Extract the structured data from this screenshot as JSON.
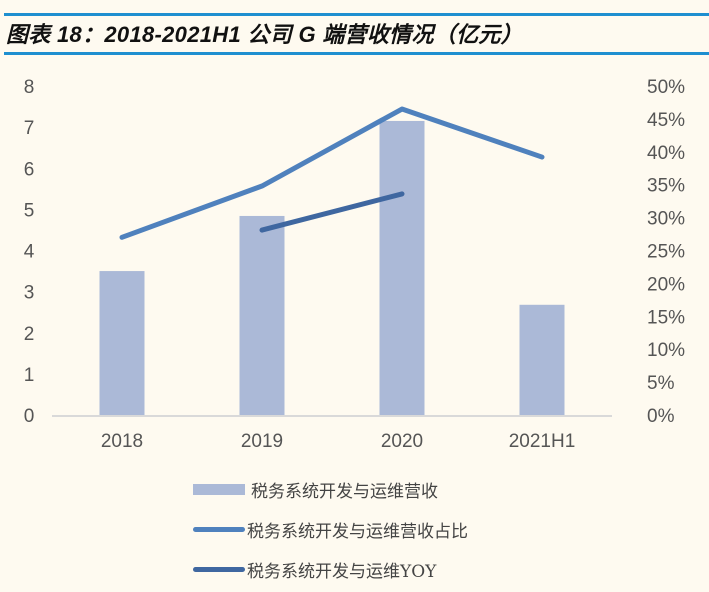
{
  "title": "图表 18：2018-2021H1 公司 G 端营收情况（亿元）",
  "colors": {
    "background": "#fefaf0",
    "title_rule": "#1e8fd0",
    "bar": "#abb9d7",
    "share_line": "#4f81bd",
    "yoy_line": "#3f67a0",
    "axis": "#d9d9d9"
  },
  "legend": [
    {
      "label": "税务系统开发与运维营收",
      "type": "bar"
    },
    {
      "label": "税务系统开发与运维营收占比",
      "type": "line"
    },
    {
      "label": "税务系统开发与运维YOY",
      "type": "line"
    }
  ],
  "chart_data": {
    "type": "bar",
    "title": "2018-2021H1 公司 G 端营收情况（亿元）",
    "categories": [
      "2018",
      "2019",
      "2020",
      "2021H1"
    ],
    "series": [
      {
        "name": "税务系统开发与运维营收",
        "type": "bar",
        "axis": "left",
        "values": [
          3.5,
          4.84,
          7.15,
          2.68
        ]
      },
      {
        "name": "税务系统开发与运维营收占比",
        "type": "line",
        "axis": "right",
        "values": [
          0.27,
          0.348,
          0.465,
          0.392
        ]
      },
      {
        "name": "税务系统开发与运维YOY",
        "type": "line",
        "axis": "right",
        "values": [
          null,
          0.281,
          0.336,
          null
        ]
      }
    ],
    "left_axis": {
      "ylim": [
        0,
        8
      ],
      "ticks": [
        "0",
        "1",
        "2",
        "3",
        "4",
        "5",
        "6",
        "7",
        "8"
      ]
    },
    "right_axis": {
      "ylim": [
        0,
        0.5
      ],
      "ticks": [
        "0%",
        "5%",
        "10%",
        "15%",
        "20%",
        "25%",
        "30%",
        "35%",
        "40%",
        "45%",
        "50%"
      ]
    },
    "xlabel": "",
    "ylabel": "",
    "grid": false,
    "legend_position": "bottom"
  }
}
